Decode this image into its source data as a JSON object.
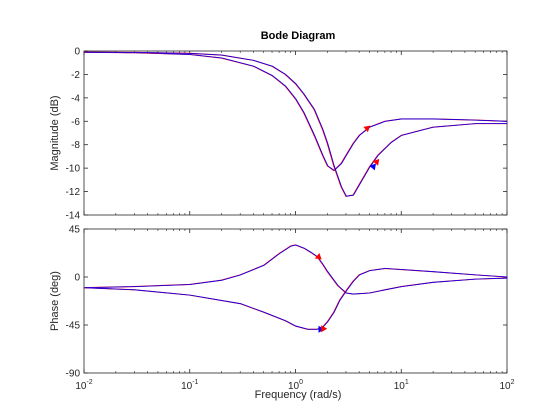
{
  "chart_data": {
    "type": "line",
    "title": "Bode Diagram",
    "xlabel": "Frequency  (rad/s)",
    "xscale": "log",
    "xlim": [
      0.01,
      100
    ],
    "x_ticks": [
      {
        "value": 0.01,
        "base": "10",
        "exp": "-2"
      },
      {
        "value": 0.1,
        "base": "10",
        "exp": "-1"
      },
      {
        "value": 1,
        "base": "10",
        "exp": "0"
      },
      {
        "value": 10,
        "base": "10",
        "exp": "1"
      },
      {
        "value": 100,
        "base": "10",
        "exp": "2"
      }
    ],
    "grid": false,
    "colors": {
      "series_a": "#ff0000",
      "series_b": "#0000ff",
      "axes": "#262626"
    },
    "magnitude": {
      "ylabel": "Magnitude (dB)",
      "ylim": [
        -14,
        0
      ],
      "y_ticks": [
        "0",
        "-2",
        "-4",
        "-6",
        "-8",
        "-10",
        "-12",
        "-14"
      ],
      "curve_1": {
        "x": [
          0.01,
          0.03,
          0.1,
          0.2,
          0.4,
          0.6,
          0.8,
          1.0,
          1.2,
          1.5,
          1.8,
          2.0,
          2.3,
          2.7,
          3.0,
          3.5,
          4.0,
          5.0,
          7.0,
          10,
          20,
          50,
          100
        ],
        "y": [
          -0.1,
          -0.15,
          -0.3,
          -0.6,
          -1.3,
          -2.1,
          -3.0,
          -4.1,
          -5.3,
          -7.2,
          -8.9,
          -9.8,
          -10.2,
          -9.6,
          -8.9,
          -7.9,
          -7.2,
          -6.5,
          -6.0,
          -5.8,
          -5.8,
          -5.9,
          -6.0
        ]
      },
      "curve_2": {
        "x": [
          0.01,
          0.03,
          0.1,
          0.2,
          0.4,
          0.6,
          0.8,
          1.0,
          1.2,
          1.5,
          1.8,
          2.0,
          2.3,
          2.7,
          3.0,
          3.5,
          4.0,
          5.0,
          6.0,
          8.0,
          10,
          20,
          50,
          100
        ],
        "y": [
          -0.1,
          -0.12,
          -0.2,
          -0.35,
          -0.8,
          -1.3,
          -2.0,
          -2.8,
          -3.7,
          -5.0,
          -6.7,
          -7.9,
          -9.8,
          -11.6,
          -12.4,
          -12.3,
          -11.4,
          -9.9,
          -8.9,
          -7.8,
          -7.2,
          -6.5,
          -6.2,
          -6.2
        ]
      }
    },
    "phase": {
      "ylabel": "Phase (deg)",
      "ylim": [
        -90,
        45
      ],
      "y_ticks": [
        "45",
        "0",
        "-45",
        "-90"
      ],
      "y_tick_values": [
        45,
        0,
        -45,
        -90
      ],
      "curve_1": {
        "x": [
          0.01,
          0.03,
          0.1,
          0.2,
          0.3,
          0.5,
          0.7,
          0.9,
          1.0,
          1.2,
          1.4,
          1.6,
          1.8,
          2.0,
          2.5,
          3.0,
          3.5,
          5.0,
          7.0,
          10,
          20,
          50,
          100
        ],
        "y": [
          -10,
          -9,
          -7,
          -3,
          2,
          11,
          22,
          29,
          30,
          27,
          23,
          19,
          12,
          5,
          -8,
          -15,
          -16,
          -15,
          -12,
          -9,
          -5,
          -2,
          -1
        ]
      },
      "curve_2": {
        "x": [
          0.01,
          0.03,
          0.1,
          0.3,
          0.5,
          0.8,
          1.0,
          1.3,
          1.6,
          1.8,
          2.0,
          2.3,
          2.6,
          3.0,
          3.5,
          4.0,
          5.0,
          7.0,
          10,
          20,
          50,
          100
        ],
        "y": [
          -10,
          -12,
          -17,
          -25,
          -33,
          -41,
          -46,
          -49,
          -49,
          -47,
          -42,
          -33,
          -22,
          -13,
          -4,
          2,
          6,
          8,
          7,
          5,
          2,
          0
        ]
      }
    }
  }
}
